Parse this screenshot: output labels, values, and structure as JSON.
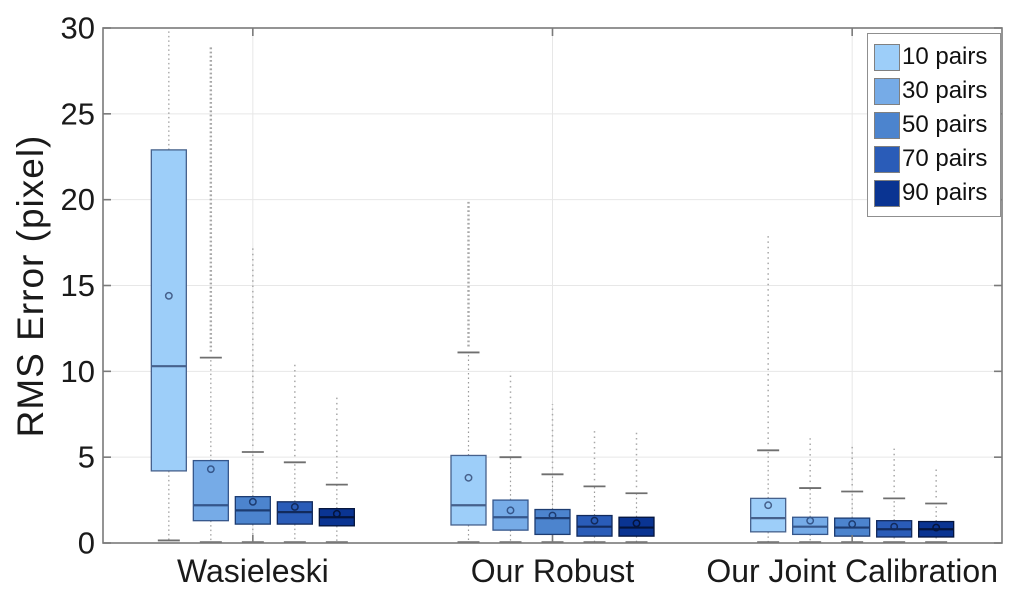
{
  "chart_data": {
    "type": "boxplot",
    "title": "",
    "xlabel": "",
    "ylabel": "RMS Error (pixel)",
    "ylim": [
      0,
      30
    ],
    "yticks": [
      0,
      5,
      10,
      15,
      20,
      25,
      30
    ],
    "grid": {
      "horizontal": true,
      "vertical_at_group_centers": true
    },
    "legend": {
      "position": "top-right",
      "entries": [
        "10 pairs",
        "30 pairs",
        "50 pairs",
        "70 pairs",
        "90 pairs"
      ]
    },
    "categories": [
      "Wasieleski",
      "Our Robust",
      "Our Joint Calibration"
    ],
    "series": [
      {
        "name": "10 pairs",
        "fill": "#9DCEF9",
        "edge": "#46618C",
        "boxes": [
          {
            "whisker_low": 0.15,
            "q1": 4.2,
            "median": 10.3,
            "q3": 22.9,
            "whisker_high": 30,
            "mean": 14.4,
            "clipped_top": true
          },
          {
            "whisker_low": 0.05,
            "q1": 1.05,
            "median": 2.2,
            "q3": 5.1,
            "whisker_high": 11.1,
            "mean": 3.8,
            "outlier_max": 20,
            "outlier_dense": true
          },
          {
            "whisker_low": 0.05,
            "q1": 0.65,
            "median": 1.45,
            "q3": 2.6,
            "whisker_high": 5.4,
            "mean": 2.2,
            "outlier_max": 18
          }
        ]
      },
      {
        "name": "30 pairs",
        "fill": "#76ABE7",
        "edge": "#35568B",
        "boxes": [
          {
            "whisker_low": 0.05,
            "q1": 1.3,
            "median": 2.2,
            "q3": 4.8,
            "whisker_high": 10.8,
            "mean": 4.3,
            "outlier_max": 29,
            "outlier_dense": true
          },
          {
            "whisker_low": 0.05,
            "q1": 0.75,
            "median": 1.5,
            "q3": 2.5,
            "whisker_high": 5.0,
            "mean": 1.9,
            "outlier_max": 10
          },
          {
            "whisker_low": 0.05,
            "q1": 0.5,
            "median": 0.95,
            "q3": 1.5,
            "whisker_high": 3.2,
            "mean": 1.3,
            "outlier_max": 6.1
          }
        ]
      },
      {
        "name": "50 pairs",
        "fill": "#4C84CE",
        "edge": "#1D3C71",
        "boxes": [
          {
            "whisker_low": 0.05,
            "q1": 1.1,
            "median": 1.9,
            "q3": 2.7,
            "whisker_high": 5.3,
            "mean": 2.4,
            "outlier_max": 17.3
          },
          {
            "whisker_low": 0.05,
            "q1": 0.5,
            "median": 1.45,
            "q3": 1.95,
            "whisker_high": 4.0,
            "mean": 1.6,
            "outlier_max": 8.1
          },
          {
            "whisker_low": 0.05,
            "q1": 0.4,
            "median": 0.9,
            "q3": 1.45,
            "whisker_high": 3.0,
            "mean": 1.1,
            "outlier_max": 5.8
          }
        ]
      },
      {
        "name": "70 pairs",
        "fill": "#2A5CB8",
        "edge": "#122A5C",
        "boxes": [
          {
            "whisker_low": 0.05,
            "q1": 1.1,
            "median": 1.8,
            "q3": 2.4,
            "whisker_high": 4.7,
            "mean": 2.1,
            "outlier_max": 10.4
          },
          {
            "whisker_low": 0.05,
            "q1": 0.4,
            "median": 0.95,
            "q3": 1.6,
            "whisker_high": 3.3,
            "mean": 1.3,
            "outlier_max": 6.6
          },
          {
            "whisker_low": 0.05,
            "q1": 0.35,
            "median": 0.8,
            "q3": 1.3,
            "whisker_high": 2.6,
            "mean": 0.95,
            "outlier_max": 5.5
          }
        ]
      },
      {
        "name": "90 pairs",
        "fill": "#0A3492",
        "edge": "#04143C",
        "boxes": [
          {
            "whisker_low": 0.05,
            "q1": 1.0,
            "median": 1.5,
            "q3": 2.0,
            "whisker_high": 3.4,
            "mean": 1.7,
            "outlier_max": 8.6
          },
          {
            "whisker_low": 0.05,
            "q1": 0.4,
            "median": 0.9,
            "q3": 1.5,
            "whisker_high": 2.9,
            "mean": 1.15,
            "outlier_max": 6.5
          },
          {
            "whisker_low": 0.05,
            "q1": 0.35,
            "median": 0.8,
            "q3": 1.25,
            "whisker_high": 2.3,
            "mean": 0.9,
            "outlier_max": 4.5
          }
        ]
      }
    ],
    "styles": {
      "axis_color": "#7A7A7A",
      "grid_color": "#E7E7E7",
      "tick_label_color": "#1A1A1A",
      "whisker_color": "#9A9A9A",
      "cap_color": "#6F6F6F",
      "outlier_color": "#A8A8A8",
      "background": "#FFFFFF"
    }
  }
}
